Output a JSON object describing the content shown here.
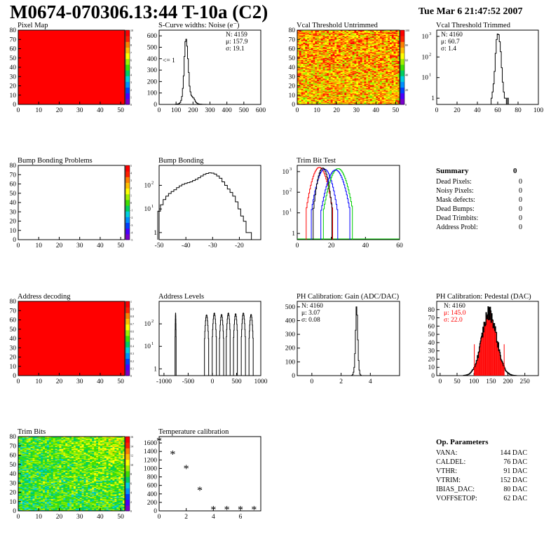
{
  "header": {
    "title": "M0674-070306.13:44 T-10a (C2)",
    "datestamp": "Tue Mar  6 21:47:52 2007"
  },
  "colors": {
    "hist_line": "#000000",
    "red_fill": "#ff0000",
    "green": "#00cc00",
    "blue": "#0000ff",
    "red": "#ff0000"
  },
  "chart_data": [
    {
      "id": "pixel_map",
      "type": "heatmap",
      "title": "Pixel Map",
      "xlim": [
        0,
        52
      ],
      "ylim": [
        0,
        80
      ],
      "x_ticks": [
        0,
        10,
        20,
        30,
        40,
        50
      ],
      "y_ticks": [
        0,
        10,
        20,
        30,
        40,
        50,
        60,
        70,
        80
      ],
      "uniform_value": 10,
      "colorbar_ticks": [
        0,
        1,
        2,
        3,
        4,
        5,
        6,
        7,
        8,
        9,
        10
      ]
    },
    {
      "id": "scurve_widths",
      "type": "bar",
      "title": "S-Curve widths: Noise (e⁻)",
      "xlim": [
        0,
        600
      ],
      "ylim": [
        0,
        650
      ],
      "x_ticks": [
        0,
        100,
        200,
        300,
        400,
        500,
        600
      ],
      "y_ticks": [
        0,
        100,
        200,
        300,
        400,
        500,
        600
      ],
      "stats": {
        "n": "N: 4159",
        "mean": "μ: 157.9",
        "sigma": "σ: 19.1"
      },
      "annotation": "<= 1",
      "x": [
        95,
        100,
        105,
        110,
        115,
        120,
        125,
        130,
        135,
        140,
        145,
        150,
        155,
        160,
        165,
        170,
        175,
        180,
        185,
        190,
        195,
        200,
        205,
        210,
        215,
        220,
        225,
        230,
        235,
        240,
        245,
        250,
        255,
        260,
        265,
        270,
        275,
        280,
        285
      ],
      "values": [
        1,
        2,
        3,
        4,
        6,
        10,
        18,
        35,
        70,
        140,
        250,
        420,
        550,
        570,
        510,
        400,
        280,
        160,
        110,
        80,
        70,
        60,
        55,
        40,
        25,
        15,
        10,
        6,
        4,
        3,
        2,
        2,
        1,
        1,
        1,
        0,
        1,
        0,
        0
      ]
    },
    {
      "id": "vcal_untrimmed",
      "type": "heatmap",
      "title": "Vcal Threshold Untrimmed",
      "xlim": [
        0,
        52
      ],
      "ylim": [
        0,
        80
      ],
      "x_ticks": [
        0,
        10,
        20,
        30,
        40,
        50
      ],
      "y_ticks": [
        0,
        10,
        20,
        30,
        40,
        50,
        60,
        70,
        80
      ],
      "colorbar_ticks": [
        0,
        20,
        40,
        60,
        80,
        100
      ]
    },
    {
      "id": "vcal_trimmed",
      "type": "bar",
      "title": "Vcal Threshold Trimmed",
      "xlim": [
        0,
        100
      ],
      "log_y": true,
      "ylim": [
        0.5,
        2000
      ],
      "x_ticks": [
        0,
        20,
        40,
        60,
        80,
        100
      ],
      "y_ticks": [
        1,
        10,
        100,
        1000
      ],
      "stats": {
        "n": "N: 4160",
        "mean": "μ: 60.7",
        "sigma": "σ:  1.4"
      },
      "x": [
        54,
        55,
        56,
        57,
        58,
        59,
        60,
        61,
        62,
        63,
        64,
        65,
        66,
        67,
        68,
        69,
        70
      ],
      "values": [
        1,
        2,
        5,
        20,
        150,
        700,
        1300,
        1200,
        550,
        180,
        30,
        6,
        2,
        1,
        1,
        0,
        1
      ]
    },
    {
      "id": "bump_problems",
      "type": "heatmap",
      "title": "Bump Bonding Problems",
      "xlim": [
        0,
        52
      ],
      "ylim": [
        0,
        80
      ],
      "x_ticks": [
        0,
        10,
        20,
        30,
        40,
        50
      ],
      "y_ticks": [
        0,
        10,
        20,
        30,
        40,
        50,
        60,
        70,
        80
      ],
      "uniform_value": 0,
      "colorbar_ticks": [
        -5,
        -4,
        -3,
        -2,
        -1,
        0,
        1,
        2,
        3,
        4,
        5
      ]
    },
    {
      "id": "bump_bonding",
      "type": "bar",
      "title": "Bump Bonding",
      "xlim": [
        -50,
        -12
      ],
      "log_y": true,
      "ylim": [
        0.5,
        700
      ],
      "x_ticks": [
        -50,
        -40,
        -30,
        -20
      ],
      "y_ticks": [
        1,
        10,
        100
      ],
      "x": [
        -50,
        -49,
        -48,
        -47,
        -46,
        -45,
        -44,
        -43,
        -42,
        -41,
        -40,
        -39,
        -38,
        -37,
        -36,
        -35,
        -34,
        -33,
        -32,
        -31,
        -30,
        -29,
        -28,
        -27,
        -26,
        -25,
        -24,
        -23,
        -22,
        -21,
        -20,
        -19,
        -18,
        -17,
        -16,
        -15
      ],
      "values": [
        8,
        15,
        25,
        35,
        45,
        55,
        65,
        80,
        95,
        110,
        120,
        130,
        140,
        160,
        180,
        210,
        250,
        290,
        320,
        340,
        330,
        300,
        250,
        200,
        140,
        100,
        70,
        50,
        35,
        20,
        10,
        5,
        3,
        1,
        1,
        0
      ]
    },
    {
      "id": "trim_bit_test",
      "type": "line",
      "title": "Trim Bit Test",
      "xlim": [
        0,
        60
      ],
      "log_y": true,
      "ylim": [
        0.5,
        2000
      ],
      "x_ticks": [
        0,
        20,
        40,
        60
      ],
      "y_ticks": [
        1,
        10,
        100,
        1000
      ],
      "series": [
        {
          "color": "#ff0000",
          "peak_x": 13,
          "peak": 1600,
          "width": 2.5
        },
        {
          "color": "#0000ff",
          "peak_x": 16,
          "peak": 1300,
          "width": 2.5
        },
        {
          "color": "#000000",
          "peak_x": 15,
          "peak": 1500,
          "width": 1.8
        },
        {
          "color": "#00cc00",
          "peak_x": 24,
          "peak": 1400,
          "width": 2.8
        },
        {
          "color": "#0000ff",
          "peak_x": 22.5,
          "peak": 1200,
          "width": 2.8
        }
      ]
    },
    {
      "id": "summary",
      "type": "table",
      "title": "Summary",
      "total": "0",
      "rows": [
        {
          "label": "Dead Pixels:",
          "value": "0"
        },
        {
          "label": "Noisy Pixels:",
          "value": "0"
        },
        {
          "label": "Mask defects:",
          "value": "0"
        },
        {
          "label": "Dead Bumps:",
          "value": "0"
        },
        {
          "label": "Dead Trimbits:",
          "value": "0"
        },
        {
          "label": "Address Probl:",
          "value": "0"
        }
      ]
    },
    {
      "id": "address_decoding",
      "type": "heatmap",
      "title": "Address decoding",
      "xlim": [
        0,
        52
      ],
      "ylim": [
        0,
        80
      ],
      "x_ticks": [
        0,
        10,
        20,
        30,
        40,
        50
      ],
      "y_ticks": [
        0,
        10,
        20,
        30,
        40,
        50,
        60,
        70,
        80
      ],
      "uniform_value": 1,
      "colorbar_ticks": [
        0,
        0.1,
        0.2,
        0.3,
        0.4,
        0.5,
        0.6,
        0.7,
        0.8,
        0.9,
        1
      ]
    },
    {
      "id": "address_levels",
      "type": "bar",
      "title": "Address Levels",
      "xlim": [
        -1100,
        1000
      ],
      "log_y": true,
      "ylim": [
        0.5,
        1000
      ],
      "x_ticks": [
        -1000,
        -500,
        0,
        500,
        1000
      ],
      "y_ticks": [
        1,
        10,
        100
      ],
      "peaks": [
        {
          "x": -760,
          "peak": 300,
          "width": 10
        },
        {
          "x": -120,
          "peak": 250,
          "width": 40
        },
        {
          "x": 40,
          "peak": 300,
          "width": 40
        },
        {
          "x": 190,
          "peak": 260,
          "width": 40
        },
        {
          "x": 330,
          "peak": 300,
          "width": 40
        },
        {
          "x": 480,
          "peak": 280,
          "width": 40
        },
        {
          "x": 640,
          "peak": 300,
          "width": 40
        },
        {
          "x": 800,
          "peak": 260,
          "width": 40
        }
      ]
    },
    {
      "id": "ph_gain",
      "type": "bar",
      "title": "PH Calibration: Gain (ADC/DAC)",
      "xlim": [
        -1,
        6
      ],
      "ylim": [
        0,
        540
      ],
      "x_ticks": [
        0,
        2,
        4
      ],
      "y_ticks": [
        0,
        100,
        200,
        300,
        400,
        500
      ],
      "stats": {
        "n": "N: 4160",
        "mean": "μ: 3.07",
        "sigma": "σ: 0.08"
      },
      "x": [
        2.75,
        2.8,
        2.85,
        2.9,
        2.95,
        3.0,
        3.05,
        3.1,
        3.15,
        3.2,
        3.25,
        3.3,
        3.35
      ],
      "values": [
        2,
        8,
        25,
        60,
        160,
        330,
        500,
        440,
        260,
        110,
        40,
        10,
        3
      ]
    },
    {
      "id": "ph_pedestal",
      "type": "bar",
      "title": "PH Calibration: Pedestal (DAC)",
      "xlim": [
        -10,
        290
      ],
      "ylim": [
        0,
        90
      ],
      "x_ticks": [
        0,
        50,
        100,
        150,
        200,
        250
      ],
      "y_ticks": [
        0,
        10,
        20,
        30,
        40,
        50,
        60,
        70,
        80
      ],
      "stats": {
        "n": "N: 4160",
        "mean": "μ: 145.0",
        "sigma": "σ: 22.0"
      },
      "fit_bounds": [
        101,
        189
      ],
      "mean": 145,
      "sigma": 22,
      "peak": 76
    },
    {
      "id": "trim_bits",
      "type": "heatmap",
      "title": "Trim Bits",
      "xlim": [
        0,
        52
      ],
      "ylim": [
        0,
        80
      ],
      "x_ticks": [
        0,
        10,
        20,
        30,
        40,
        50
      ],
      "y_ticks": [
        0,
        10,
        20,
        30,
        40,
        50,
        60,
        70,
        80
      ],
      "colorbar_ticks": [
        0,
        2,
        4,
        6,
        8,
        10,
        12,
        14,
        16
      ]
    },
    {
      "id": "temperature_calibration",
      "type": "scatter",
      "title": "Temperature calibration",
      "xlim": [
        0,
        7.5
      ],
      "ylim": [
        0,
        1750
      ],
      "x_ticks": [
        0,
        2,
        4,
        6
      ],
      "y_ticks": [
        0,
        200,
        400,
        600,
        800,
        1000,
        1200,
        1400,
        1600
      ],
      "x": [
        0,
        1,
        2,
        3,
        4,
        5,
        6,
        7
      ],
      "y": [
        1640,
        1330,
        990,
        480,
        25,
        25,
        25,
        25
      ]
    },
    {
      "id": "op_parameters",
      "type": "table",
      "title": "Op. Parameters",
      "rows": [
        {
          "label": "VANA:",
          "value": "144 DAC"
        },
        {
          "label": "CALDEL:",
          "value": "76 DAC"
        },
        {
          "label": "VTHR:",
          "value": "91 DAC"
        },
        {
          "label": "VTRIM:",
          "value": "152 DAC"
        },
        {
          "label": "IBIAS_DAC:",
          "value": "80 DAC"
        },
        {
          "label": "VOFFSETOP:",
          "value": "62 DAC"
        }
      ]
    }
  ]
}
